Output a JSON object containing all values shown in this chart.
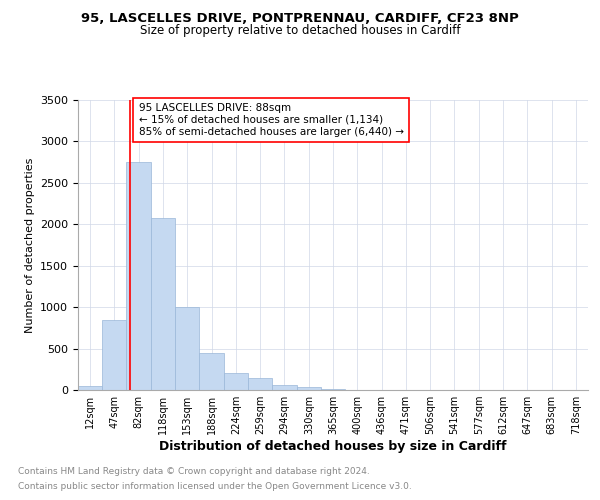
{
  "title1": "95, LASCELLES DRIVE, PONTPRENNAU, CARDIFF, CF23 8NP",
  "title2": "Size of property relative to detached houses in Cardiff",
  "xlabel": "Distribution of detached houses by size in Cardiff",
  "ylabel": "Number of detached properties",
  "footer1": "Contains HM Land Registry data © Crown copyright and database right 2024.",
  "footer2": "Contains public sector information licensed under the Open Government Licence v3.0.",
  "annotation_line1": "95 LASCELLES DRIVE: 88sqm",
  "annotation_line2": "← 15% of detached houses are smaller (1,134)",
  "annotation_line3": "85% of semi-detached houses are larger (6,440) →",
  "bar_color": "#c5d9f1",
  "bar_edge_color": "#9ab7d8",
  "red_line_sqm": 88,
  "ylim": [
    0,
    3500
  ],
  "yticks": [
    0,
    500,
    1000,
    1500,
    2000,
    2500,
    3000,
    3500
  ],
  "categories": [
    "12sqm",
    "47sqm",
    "82sqm",
    "118sqm",
    "153sqm",
    "188sqm",
    "224sqm",
    "259sqm",
    "294sqm",
    "330sqm",
    "365sqm",
    "400sqm",
    "436sqm",
    "471sqm",
    "506sqm",
    "541sqm",
    "577sqm",
    "612sqm",
    "647sqm",
    "683sqm",
    "718sqm"
  ],
  "bin_edges": [
    12,
    47,
    82,
    118,
    153,
    188,
    224,
    259,
    294,
    330,
    365,
    400,
    436,
    471,
    506,
    541,
    577,
    612,
    647,
    683,
    718,
    753
  ],
  "values": [
    50,
    850,
    2750,
    2075,
    1000,
    450,
    210,
    145,
    65,
    35,
    10,
    5,
    3,
    2,
    1,
    1,
    0,
    0,
    0,
    0,
    0
  ]
}
